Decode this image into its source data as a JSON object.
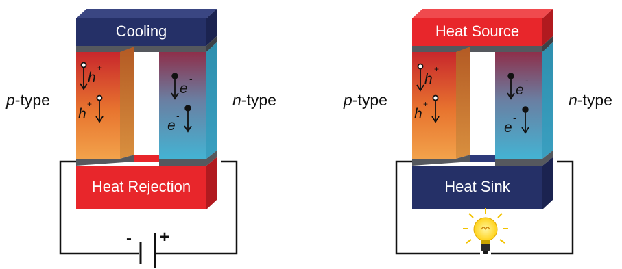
{
  "left_module": {
    "top_block": "Cooling",
    "bottom_block": "Heat Rejection",
    "p_label_italic": "p",
    "p_label_rest": "-type",
    "n_label_italic": "n",
    "n_label_rest": "-type",
    "hole_symbol": "h",
    "hole_charge": "+",
    "electron_symbol": "e",
    "electron_charge": "-",
    "battery_minus": "-",
    "battery_plus": "+"
  },
  "right_module": {
    "top_block": "Heat Source",
    "bottom_block": "Heat Sink",
    "p_label_italic": "p",
    "p_label_rest": "-type",
    "n_label_italic": "n",
    "n_label_rest": "-type",
    "hole_symbol": "h",
    "hole_charge": "+",
    "electron_symbol": "e",
    "electron_charge": "-",
    "load_icon": "light-bulb-icon"
  },
  "colors": {
    "cooling_navy": "#253067",
    "hot_red": "#e8262b",
    "p_top": "#c8272c",
    "p_bottom": "#f2a24b",
    "n_top": "#8e2f4a",
    "n_bottom": "#44b3d3",
    "metal": "#55585e",
    "wire": "#111111"
  }
}
